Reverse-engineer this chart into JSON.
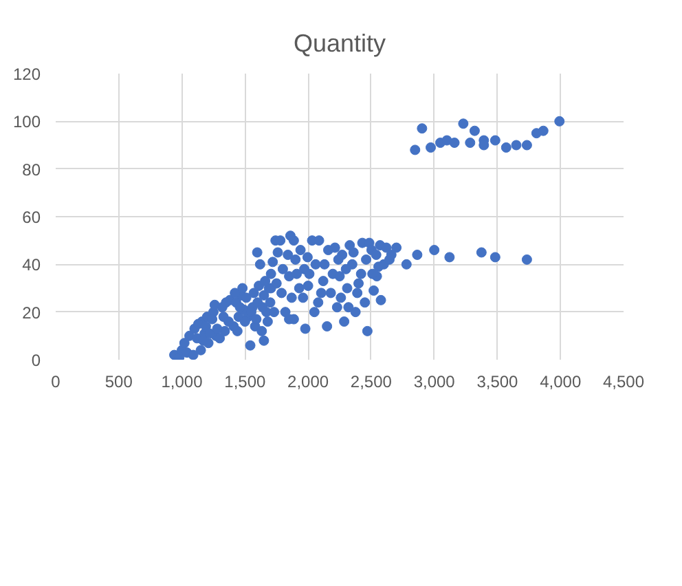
{
  "chart_data": {
    "type": "scatter",
    "title": "Quantity",
    "xlim": [
      0,
      4500
    ],
    "ylim": [
      0,
      120
    ],
    "xticks": [
      0,
      500,
      {
        "value": 1000,
        "label": "1,000"
      },
      {
        "value": 1500,
        "label": "1,500"
      },
      {
        "value": 2000,
        "label": "2,000"
      },
      {
        "value": 2500,
        "label": "2,500"
      },
      {
        "value": 3000,
        "label": "3,000"
      },
      {
        "value": 3500,
        "label": "3,500"
      },
      {
        "value": 4000,
        "label": "4,000"
      },
      {
        "value": 4500,
        "label": "4,500"
      }
    ],
    "yticks": [
      0,
      20,
      40,
      60,
      80,
      100,
      120
    ],
    "grid": true,
    "marker": "circle",
    "series": [
      {
        "color": "#4472c4",
        "x": [
          940,
          980,
          1000,
          1020,
          1040,
          1060,
          1100,
          1120,
          1150,
          1160,
          1180,
          1200,
          1210,
          1250,
          1270,
          1320,
          1340,
          1380,
          1410,
          1430,
          1450,
          1470,
          1490,
          1524,
          1542,
          1560,
          1580,
          1600,
          1633,
          1650,
          1670,
          1690,
          1706,
          1706,
          1720,
          1742,
          1597,
          1620,
          1650,
          1780,
          1800,
          1850,
          1850,
          1870,
          1887,
          1887,
          1900,
          1930,
          1960,
          1978,
          1996,
          2010,
          2032,
          2050,
          2087,
          2104,
          2130,
          2150,
          2196,
          2213,
          2230,
          2250,
          2270,
          2286,
          2310,
          2330,
          2350,
          2376,
          2400,
          2430,
          2450,
          2470,
          2485,
          2503,
          2520,
          2545,
          2558,
          2577,
          2600,
          2645,
          2700,
          2780,
          2865,
          3000,
          3121,
          3374,
          3483,
          3734,
          2848,
          2903,
          2972,
          3048,
          3100,
          3160,
          3230,
          3284,
          3320,
          3393,
          3393,
          3483,
          3570,
          3650,
          3734,
          3810,
          3864,
          3992,
          1090,
          1130,
          1170,
          1190,
          1220,
          1240,
          1260,
          1280,
          1300,
          1330,
          1350,
          1370,
          1420,
          1440,
          1460,
          1480,
          1500,
          1510,
          1550,
          1570,
          1590,
          1610,
          1640,
          1660,
          1680,
          1700,
          1730,
          1750,
          1760,
          1790,
          1820,
          1840,
          1860,
          1910,
          1940,
          1970,
          2000,
          2060,
          2080,
          2120,
          2160,
          2180,
          2240,
          2260,
          2300,
          2320,
          2360,
          2390,
          2420,
          2460,
          2510,
          2540,
          2570,
          2620,
          2660
        ],
        "values": [
          2,
          1,
          4,
          7,
          3,
          10,
          13,
          9,
          4,
          16,
          11,
          18,
          7,
          20,
          10,
          22,
          12,
          25,
          14,
          24,
          18,
          27,
          21,
          18,
          6,
          22,
          14,
          24,
          12,
          8,
          20,
          30,
          30,
          36,
          41,
          50,
          45,
          40,
          27,
          50,
          38,
          35,
          17,
          26,
          50,
          17,
          42,
          30,
          26,
          13,
          43,
          36,
          50,
          20,
          50,
          28,
          40,
          14,
          36,
          47,
          22,
          35,
          44,
          16,
          30,
          48,
          40,
          20,
          32,
          49,
          24,
          12,
          49,
          46,
          29,
          35,
          39,
          25,
          40,
          42,
          47,
          40,
          44,
          46,
          43,
          45,
          43,
          42,
          88,
          97,
          89,
          91,
          92,
          91,
          99,
          91,
          96,
          92,
          90,
          92,
          89,
          90,
          90,
          95,
          96,
          100,
          2,
          15,
          8,
          14,
          11,
          17,
          23,
          13,
          9,
          18,
          24,
          16,
          28,
          12,
          22,
          30,
          16,
          26,
          20,
          28,
          17,
          31,
          22,
          33,
          16,
          24,
          20,
          32,
          45,
          28,
          20,
          44,
          52,
          36,
          46,
          38,
          31,
          40,
          24,
          33,
          46,
          28,
          42,
          26,
          38,
          22,
          45,
          28,
          36,
          42,
          36,
          44,
          48,
          47,
          44
        ]
      }
    ]
  }
}
